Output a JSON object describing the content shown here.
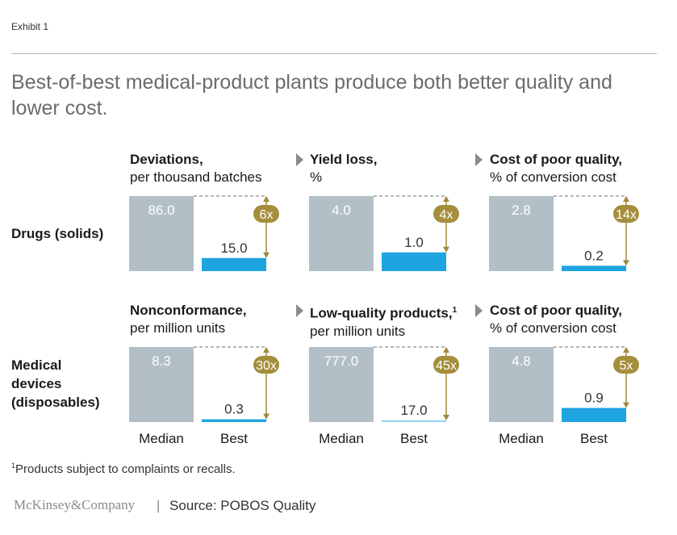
{
  "exhibit": "Exhibit 1",
  "title": "Best-of-best medical-product plants produce both better quality and lower cost.",
  "rows": [
    "Drugs (solids)",
    "Medical\ndevices\n(disposables)"
  ],
  "axis_labels": [
    "Median",
    "Best"
  ],
  "footnote_mark": "1",
  "footnote": "Products subject to complaints or recalls.",
  "logo": "McKinsey&Company",
  "separator": "|",
  "source": "Source: POBOS Quality",
  "colors": {
    "median": "#b3bfc7",
    "best": "#1ea4e0",
    "best_light": "#8ed3f0",
    "arrow": "#a0893a",
    "badge": "#a58e3c"
  },
  "chart_data": [
    {
      "type": "bar",
      "title": "Deviations,",
      "subtitle": "per thousand batches",
      "row": "Drugs (solids)",
      "categories": [
        "Median",
        "Best"
      ],
      "values": [
        86.0,
        15.0
      ],
      "labels": [
        "86.0",
        "15.0"
      ],
      "multiplier": "6x"
    },
    {
      "type": "bar",
      "title": "Yield loss,",
      "subtitle": "%",
      "row": "Drugs (solids)",
      "categories": [
        "Median",
        "Best"
      ],
      "values": [
        4.0,
        1.0
      ],
      "labels": [
        "4.0",
        "1.0"
      ],
      "multiplier": "4x"
    },
    {
      "type": "bar",
      "title": "Cost of poor quality,",
      "subtitle": "% of conversion cost",
      "row": "Drugs (solids)",
      "categories": [
        "Median",
        "Best"
      ],
      "values": [
        2.8,
        0.2
      ],
      "labels": [
        "2.8",
        "0.2"
      ],
      "multiplier": "14x"
    },
    {
      "type": "bar",
      "title": "Nonconformance,",
      "subtitle": "per million units",
      "row": "Medical devices (disposables)",
      "categories": [
        "Median",
        "Best"
      ],
      "values": [
        8.3,
        0.3
      ],
      "labels": [
        "8.3",
        "0.3"
      ],
      "multiplier": "30x"
    },
    {
      "type": "bar",
      "title": "Low-quality products,",
      "title_sup": "1",
      "subtitle": "per million units",
      "row": "Medical devices (disposables)",
      "categories": [
        "Median",
        "Best"
      ],
      "values": [
        777.0,
        17.0
      ],
      "labels": [
        "777.0",
        "17.0"
      ],
      "multiplier": "45x"
    },
    {
      "type": "bar",
      "title": "Cost of poor quality,",
      "subtitle": "% of conversion cost",
      "row": "Medical devices (disposables)",
      "categories": [
        "Median",
        "Best"
      ],
      "values": [
        4.8,
        0.9
      ],
      "labels": [
        "4.8",
        "0.9"
      ],
      "multiplier": "5x"
    }
  ]
}
